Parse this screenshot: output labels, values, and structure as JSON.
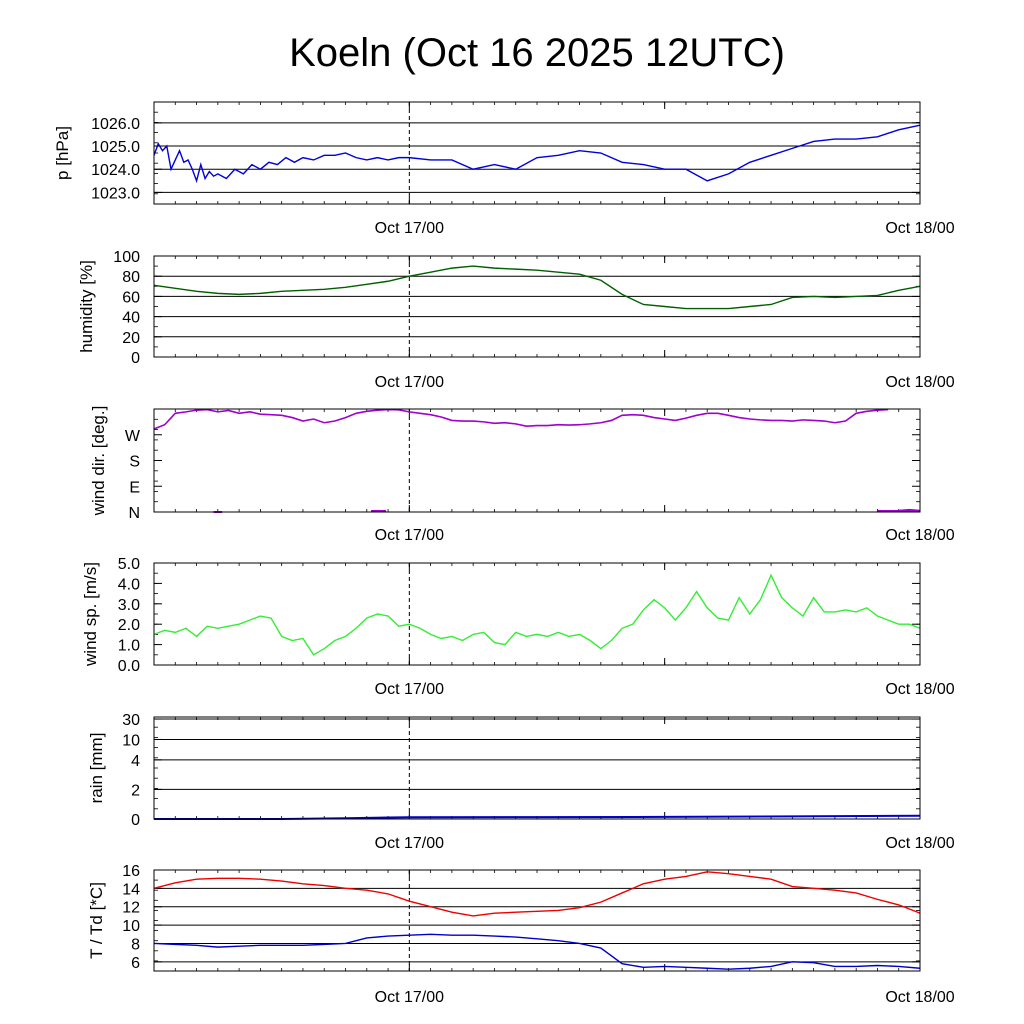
{
  "title": "Koeln (Oct 16 2025 12UTC)",
  "x_tick_labels": [
    "Oct 17/00",
    "Oct 18/00"
  ],
  "x_range_hours": [
    0,
    36
  ],
  "chart_data": [
    {
      "type": "line",
      "name": "pressure",
      "ylabel": "p [hPa]",
      "ylim": [
        1022.5,
        1026.9
      ],
      "yticks": [
        1023.0,
        1024.0,
        1025.0,
        1026.0
      ],
      "ytick_labels": [
        "1023.0",
        "1024.0",
        "1025.0",
        "1026.0"
      ],
      "grid": true,
      "series": [
        {
          "name": "p",
          "color": "#0000dd",
          "x": [
            0,
            0.2,
            0.4,
            0.6,
            0.8,
            1.0,
            1.2,
            1.4,
            1.6,
            1.8,
            2.0,
            2.2,
            2.4,
            2.6,
            2.8,
            3.0,
            3.4,
            3.8,
            4.2,
            4.6,
            5.0,
            5.4,
            5.8,
            6.2,
            6.6,
            7.0,
            7.5,
            8,
            8.5,
            9,
            9.5,
            10,
            10.5,
            11,
            11.5,
            12,
            13,
            14,
            15,
            16,
            17,
            18,
            19,
            20,
            21,
            22,
            23,
            24,
            25,
            26,
            27,
            28,
            29,
            30,
            31,
            32,
            33,
            34,
            35,
            36
          ],
          "values": [
            1024.6,
            1025.1,
            1024.8,
            1025.0,
            1024.0,
            1024.4,
            1024.8,
            1024.3,
            1024.4,
            1024.0,
            1023.5,
            1024.2,
            1023.6,
            1023.9,
            1023.7,
            1023.8,
            1023.6,
            1024.0,
            1023.8,
            1024.2,
            1024.0,
            1024.3,
            1024.2,
            1024.5,
            1024.3,
            1024.5,
            1024.4,
            1024.6,
            1024.6,
            1024.7,
            1024.5,
            1024.4,
            1024.5,
            1024.4,
            1024.5,
            1024.5,
            1024.4,
            1024.4,
            1024.0,
            1024.2,
            1024.0,
            1024.5,
            1024.6,
            1024.8,
            1024.7,
            1024.3,
            1024.2,
            1024.0,
            1024.0,
            1023.5,
            1023.8,
            1024.3,
            1024.6,
            1024.9,
            1025.2,
            1025.3,
            1025.3,
            1025.4,
            1025.7,
            1025.9
          ]
        }
      ]
    },
    {
      "type": "line",
      "name": "humidity",
      "ylabel": "humidity [%]",
      "ylim": [
        0,
        100
      ],
      "yticks": [
        0,
        20,
        40,
        60,
        80,
        100
      ],
      "ytick_labels": [
        "0",
        "20",
        "40",
        "60",
        "80",
        "100"
      ],
      "grid": true,
      "series": [
        {
          "name": "rh",
          "color": "#006000",
          "x": [
            0,
            1,
            2,
            3,
            4,
            5,
            6,
            7,
            8,
            9,
            10,
            11,
            12,
            13,
            14,
            15,
            16,
            17,
            18,
            19,
            20,
            21,
            22,
            23,
            24,
            25,
            26,
            27,
            28,
            29,
            30,
            31,
            32,
            33,
            34,
            35,
            36
          ],
          "values": [
            71,
            68,
            65,
            63,
            62,
            63,
            65,
            66,
            67,
            69,
            72,
            75,
            80,
            84,
            88,
            90,
            88,
            87,
            86,
            84,
            82,
            76,
            62,
            52,
            50,
            48,
            48,
            48,
            50,
            52,
            59,
            60,
            59,
            60,
            61,
            66,
            70
          ]
        }
      ]
    },
    {
      "type": "scatter",
      "name": "wind_direction",
      "ylabel": "wind dir. [deg.]",
      "ylim": [
        0,
        360
      ],
      "yticks": [
        0,
        90,
        180,
        270
      ],
      "ytick_labels": [
        "N",
        "E",
        "S",
        "W"
      ],
      "grid": false,
      "series": [
        {
          "name": "dd",
          "color": "#a000d0",
          "x": [
            0,
            0.5,
            1,
            1.5,
            2,
            2.5,
            3,
            3.5,
            4,
            4.5,
            5,
            5.5,
            6,
            6.5,
            7,
            7.5,
            8,
            8.5,
            9,
            9.5,
            10,
            10.5,
            11,
            11.5,
            12,
            12.5,
            13,
            13.5,
            14,
            14.5,
            15,
            15.5,
            16,
            16.5,
            17,
            17.5,
            18,
            18.5,
            19,
            19.5,
            20,
            20.5,
            21,
            21.5,
            22,
            22.5,
            23,
            23.5,
            24,
            24.5,
            25,
            25.5,
            26,
            26.5,
            27,
            27.5,
            28,
            28.5,
            29,
            29.5,
            30,
            30.5,
            31,
            31.5,
            32,
            32.5,
            33,
            33.5,
            34,
            34.5,
            35,
            35.5,
            36
          ],
          "values": [
            290,
            305,
            345,
            350,
            356,
            358,
            350,
            355,
            345,
            350,
            342,
            340,
            338,
            330,
            318,
            325,
            312,
            318,
            330,
            345,
            352,
            356,
            358,
            357,
            350,
            345,
            340,
            332,
            320,
            318,
            318,
            315,
            310,
            312,
            308,
            300,
            302,
            302,
            305,
            304,
            305,
            308,
            312,
            320,
            338,
            340,
            338,
            330,
            325,
            320,
            328,
            338,
            345,
            345,
            338,
            330,
            325,
            322,
            320,
            320,
            318,
            322,
            320,
            318,
            312,
            318,
            345,
            352,
            356,
            358,
            5,
            8,
            5
          ]
        }
      ]
    },
    {
      "type": "line",
      "name": "wind_speed",
      "ylabel": "wind sp. [m/s]",
      "ylim": [
        0,
        5
      ],
      "yticks": [
        0,
        1,
        2,
        3,
        4,
        5
      ],
      "ytick_labels": [
        "0.0",
        "1.0",
        "2.0",
        "3.0",
        "4.0",
        "5.0"
      ],
      "grid": false,
      "series": [
        {
          "name": "ff",
          "color": "#33ee33",
          "x": [
            0,
            0.5,
            1,
            1.5,
            2,
            2.5,
            3,
            3.5,
            4,
            4.5,
            5,
            5.5,
            6,
            6.5,
            7,
            7.5,
            8,
            8.5,
            9,
            9.5,
            10,
            10.5,
            11,
            11.5,
            12,
            12.5,
            13,
            13.5,
            14,
            14.5,
            15,
            15.5,
            16,
            16.5,
            17,
            17.5,
            18,
            18.5,
            19,
            19.5,
            20,
            20.5,
            21,
            21.5,
            22,
            22.5,
            23,
            23.5,
            24,
            24.5,
            25,
            25.5,
            26,
            26.5,
            27,
            27.5,
            28,
            28.5,
            29,
            29.5,
            30,
            30.5,
            31,
            31.5,
            32,
            32.5,
            33,
            33.5,
            34,
            34.5,
            35,
            35.5,
            36
          ],
          "values": [
            1.5,
            1.7,
            1.6,
            1.8,
            1.4,
            1.9,
            1.8,
            1.9,
            2.0,
            2.2,
            2.4,
            2.3,
            1.4,
            1.2,
            1.3,
            0.5,
            0.8,
            1.2,
            1.4,
            1.8,
            2.3,
            2.5,
            2.4,
            1.9,
            2.0,
            1.8,
            1.5,
            1.3,
            1.4,
            1.2,
            1.5,
            1.6,
            1.1,
            1.0,
            1.6,
            1.4,
            1.5,
            1.4,
            1.6,
            1.4,
            1.5,
            1.2,
            0.8,
            1.2,
            1.8,
            2.0,
            2.7,
            3.2,
            2.8,
            2.2,
            2.8,
            3.6,
            2.8,
            2.3,
            2.2,
            3.3,
            2.5,
            3.2,
            4.4,
            3.3,
            2.8,
            2.4,
            3.3,
            2.6,
            2.6,
            2.7,
            2.6,
            2.8,
            2.4,
            2.2,
            2.0,
            2.0,
            1.8
          ]
        }
      ]
    },
    {
      "type": "area",
      "name": "rain",
      "ylabel": "rain [mm]",
      "ylim": [
        0,
        30
      ],
      "yticks": [
        0,
        2,
        4,
        10,
        30
      ],
      "ytick_labels": [
        "0",
        "2",
        "4",
        "10",
        "30"
      ],
      "scale": "nonlinear",
      "grid": true,
      "series": [
        {
          "name": "rr",
          "color": "#0000cc",
          "x": [
            0,
            6,
            9,
            11,
            12,
            18,
            24,
            30,
            36
          ],
          "values": [
            0,
            0,
            0.05,
            0.1,
            0.12,
            0.13,
            0.14,
            0.18,
            0.22
          ]
        }
      ]
    },
    {
      "type": "line",
      "name": "temperature_dewpoint",
      "ylabel": "T / Td [*C]",
      "ylim": [
        5,
        16
      ],
      "yticks": [
        6,
        8,
        10,
        12,
        14,
        16
      ],
      "ytick_labels": [
        "6",
        "8",
        "10",
        "12",
        "14",
        "16"
      ],
      "grid": true,
      "series": [
        {
          "name": "T",
          "color": "#ee0000",
          "x": [
            0,
            1,
            2,
            3,
            4,
            5,
            6,
            7,
            8,
            9,
            10,
            11,
            12,
            13,
            14,
            15,
            16,
            17,
            18,
            19,
            20,
            21,
            22,
            23,
            24,
            25,
            26,
            27,
            28,
            29,
            30,
            31,
            32,
            33,
            34,
            35,
            36
          ],
          "values": [
            14.0,
            14.6,
            15.0,
            15.1,
            15.1,
            15.0,
            14.8,
            14.5,
            14.3,
            14.0,
            13.8,
            13.4,
            12.6,
            12.0,
            11.4,
            11.0,
            11.3,
            11.4,
            11.5,
            11.6,
            11.9,
            12.5,
            13.5,
            14.5,
            15.0,
            15.3,
            15.8,
            15.6,
            15.3,
            15.0,
            14.2,
            14.0,
            13.8,
            13.5,
            12.8,
            12.2,
            11.3
          ]
        },
        {
          "name": "Td",
          "color": "#0000cc",
          "x": [
            0,
            1,
            2,
            3,
            4,
            5,
            6,
            7,
            8,
            9,
            10,
            11,
            12,
            13,
            14,
            15,
            16,
            17,
            18,
            19,
            20,
            21,
            22,
            23,
            24,
            25,
            26,
            27,
            28,
            29,
            30,
            31,
            32,
            33,
            34,
            35,
            36
          ],
          "values": [
            8.0,
            7.9,
            7.8,
            7.6,
            7.7,
            7.8,
            7.8,
            7.8,
            7.9,
            8.0,
            8.6,
            8.8,
            8.9,
            9.0,
            8.9,
            8.9,
            8.8,
            8.7,
            8.5,
            8.3,
            8.0,
            7.5,
            5.8,
            5.4,
            5.5,
            5.4,
            5.3,
            5.2,
            5.3,
            5.5,
            6.0,
            5.9,
            5.5,
            5.5,
            5.6,
            5.5,
            5.3
          ]
        }
      ]
    }
  ]
}
